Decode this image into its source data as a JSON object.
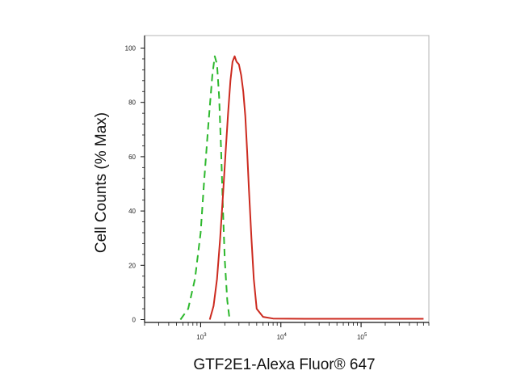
{
  "chart_data": {
    "type": "line",
    "xlabel": "GTF2E1-Alexa Fluor® 647",
    "ylabel": "Cell Counts (% Max)",
    "x_scale": "log",
    "xlim": [
      200,
      700000
    ],
    "ylim": [
      0,
      104
    ],
    "y_ticks": [
      0,
      20,
      40,
      60,
      80,
      100
    ],
    "x_ticks": [
      {
        "value": 1000,
        "base": "10",
        "exp": "3"
      },
      {
        "value": 10000,
        "base": "10",
        "exp": "4"
      },
      {
        "value": 100000,
        "base": "10",
        "exp": "5"
      }
    ],
    "grid": false,
    "series": [
      {
        "color": "#2db82d",
        "dash": "dashed",
        "x": [
          560,
          700,
          850,
          1000,
          1100,
          1250,
          1400,
          1500,
          1600,
          1700,
          1800,
          1900,
          2000,
          2150,
          2300
        ],
        "y": [
          0,
          4,
          15,
          32,
          50,
          72,
          90,
          97,
          94,
          82,
          62,
          40,
          22,
          7,
          0
        ]
      },
      {
        "color": "#cc2a1f",
        "dash": "solid",
        "x": [
          1300,
          1450,
          1600,
          1750,
          1900,
          2050,
          2200,
          2350,
          2500,
          2650,
          2800,
          3000,
          3200,
          3400,
          3600,
          3800,
          4000,
          4300,
          4600,
          5000,
          6000,
          8000,
          20000,
          100000,
          600000
        ],
        "y": [
          0,
          5,
          15,
          30,
          46,
          62,
          76,
          88,
          95,
          97,
          95,
          94,
          90,
          84,
          75,
          62,
          48,
          30,
          15,
          4,
          1,
          0.4,
          0.3,
          0.3,
          0.3
        ]
      }
    ]
  }
}
